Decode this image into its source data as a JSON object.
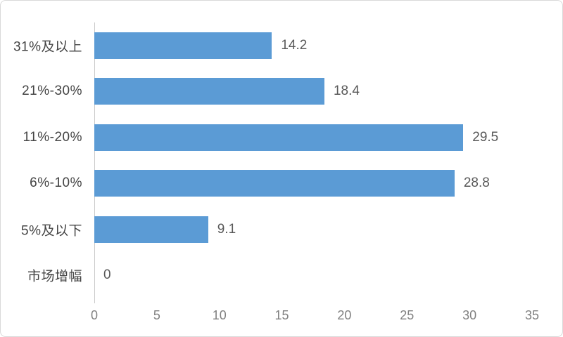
{
  "chart_data": {
    "type": "bar",
    "orientation": "horizontal",
    "title": "",
    "categories": [
      "31%及以上",
      "21%-30%",
      "11%-20%",
      "6%-10%",
      "5%及以下",
      "市场增幅"
    ],
    "values": [
      14.2,
      18.4,
      29.5,
      28.8,
      9.1,
      0
    ],
    "value_labels": [
      "14.2",
      "18.4",
      "29.5",
      "28.8",
      "9.1",
      "0"
    ],
    "xlabel": "",
    "ylabel": "",
    "xlim": [
      0,
      35
    ],
    "xticks": [
      0,
      5,
      10,
      15,
      20,
      25,
      30,
      35
    ],
    "xtick_labels": [
      "0",
      "5",
      "10",
      "15",
      "20",
      "25",
      "30",
      "35"
    ],
    "grid": false,
    "legend": false,
    "bar_color": "#5B9BD5",
    "colors": {
      "background": "#ffffff",
      "border": "#d9d9d9",
      "axis_line": "#c9c9c9",
      "category_label": "#444444",
      "value_label": "#595959",
      "tick_label": "#808080"
    }
  }
}
